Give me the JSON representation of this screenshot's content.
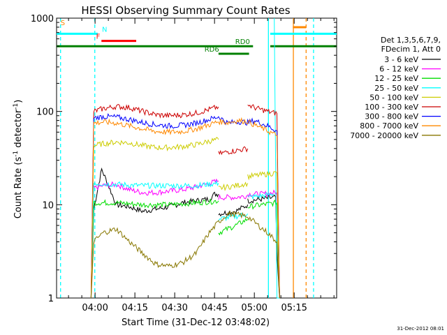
{
  "chart_data": {
    "type": "line",
    "title": "HESSI Observing Summary Count Rates",
    "xlabel": "Start Time (31-Dec-12 03:48:02)",
    "ylabel": "Count Rate (s⁻¹ detector⁻¹)",
    "ylabel_parts": {
      "base": "Count Rate (s",
      "sup1": "-1",
      "mid": " detector",
      "sup2": "-1",
      "end": ")"
    },
    "footer": "31-Dec-2012 08:01",
    "x_range_min": [
      -2.5,
      103
    ],
    "x_ticks": [
      {
        "v": 12,
        "label": "04:00"
      },
      {
        "v": 27,
        "label": "04:15"
      },
      {
        "v": 42,
        "label": "04:30"
      },
      {
        "v": 57,
        "label": "04:45"
      },
      {
        "v": 72,
        "label": "05:00"
      },
      {
        "v": 87,
        "label": "05:15"
      }
    ],
    "y_scale": "log",
    "y_range": [
      1,
      1000
    ],
    "y_ticks": [
      {
        "v": 1,
        "label": "1"
      },
      {
        "v": 10,
        "label": "10"
      },
      {
        "v": 100,
        "label": "100"
      },
      {
        "v": 1000,
        "label": "1000"
      }
    ],
    "legend": {
      "placement": "right",
      "header": [
        "Det 1,3,5,6,7,9,",
        "FDecim 1, Att 0"
      ],
      "entries": [
        {
          "label": "3 - 6 keV",
          "color": "#000000"
        },
        {
          "label": "6 - 12 keV",
          "color": "#ff00ff"
        },
        {
          "label": "12 - 25 keV",
          "color": "#00dd00"
        },
        {
          "label": "25 - 50 keV",
          "color": "#00ffff"
        },
        {
          "label": "50 - 100 keV",
          "color": "#cccc00"
        },
        {
          "label": "100 - 300 keV",
          "color": "#cc0000"
        },
        {
          "label": "300 - 800 keV",
          "color": "#0000ff"
        },
        {
          "label": "800 - 7000 keV",
          "color": "#ff8800"
        },
        {
          "label": "7000 - 20000 keV",
          "color": "#887700"
        }
      ]
    },
    "series": [
      {
        "name": "3 - 6 keV",
        "color": "#000000",
        "segments": [
          {
            "x": [
              10.5,
              11.5,
              14.5,
              20,
              25,
              30,
              35,
              40,
              45,
              50,
              55,
              57,
              58.5
            ],
            "y": [
              1,
              9,
              24,
              10,
              9.5,
              8.5,
              9,
              9.5,
              10.5,
              11,
              11.5,
              13,
              13
            ]
          },
          {
            "x": [
              58.5,
              65,
              69.5
            ],
            "y": [
              8,
              8.5,
              10
            ]
          },
          {
            "x": [
              69.5,
              80,
              80.5,
              81.5
            ],
            "y": [
              11,
              12,
              3,
              1
            ]
          }
        ]
      },
      {
        "name": "6 - 12 keV",
        "color": "#ff00ff",
        "segments": [
          {
            "x": [
              10.5,
              11.5,
              15,
              20,
              25,
              30,
              35,
              40,
              45,
              50,
              55,
              58.5
            ],
            "y": [
              1,
              15,
              16,
              16.5,
              14.5,
              13.5,
              13.5,
              14,
              14.5,
              15.5,
              17,
              18
            ]
          },
          {
            "x": [
              58.5,
              65,
              69.5
            ],
            "y": [
              12,
              12,
              12.5
            ]
          },
          {
            "x": [
              69.5,
              75,
              80.5,
              81.5
            ],
            "y": [
              13,
              13,
              13.5,
              1
            ]
          }
        ]
      },
      {
        "name": "12 - 25 keV",
        "color": "#00dd00",
        "segments": [
          {
            "x": [
              10.5,
              11.5,
              20,
              30,
              40,
              50,
              58.5
            ],
            "y": [
              1,
              10.5,
              10.5,
              10,
              10,
              10.5,
              11
            ]
          },
          {
            "x": [
              58.5,
              65,
              69.5
            ],
            "y": [
              5,
              6,
              7
            ]
          },
          {
            "x": [
              69.5,
              75,
              80.5,
              81.5
            ],
            "y": [
              9.5,
              10,
              10.5,
              1
            ]
          }
        ]
      },
      {
        "name": "25 - 50 keV",
        "color": "#00ffff",
        "segments": [
          {
            "x": [
              10.5,
              11.5,
              20,
              30,
              40,
              50,
              58.5
            ],
            "y": [
              1,
              17,
              16.5,
              16,
              16,
              16,
              17
            ]
          },
          {
            "x": [
              58.5,
              65,
              69.5
            ],
            "y": [
              7,
              7.5,
              8
            ]
          },
          {
            "x": [
              69.5,
              75,
              79.5
            ],
            "y": [
              12,
              12.5,
              13
            ]
          },
          {
            "x": [
              79.5,
              80.5,
              81.5
            ],
            "y": [
              1000,
              1,
              1
            ]
          }
        ]
      },
      {
        "name": "50 - 100 keV",
        "color": "#cccc00",
        "segments": [
          {
            "x": [
              10.5,
              11.5,
              15,
              20,
              25,
              30,
              35,
              40,
              45,
              50,
              55,
              58.5
            ],
            "y": [
              1,
              43,
              45,
              47,
              46,
              43,
              41,
              41,
              42,
              44,
              48,
              50
            ]
          },
          {
            "x": [
              58.5,
              65,
              69.5
            ],
            "y": [
              15,
              16,
              17
            ]
          },
          {
            "x": [
              69.5,
              75,
              80.5,
              81.5
            ],
            "y": [
              20,
              21,
              22,
              1
            ]
          }
        ]
      },
      {
        "name": "100 - 300 keV",
        "color": "#cc0000",
        "segments": [
          {
            "x": [
              10.5,
              11.5,
              15,
              20,
              25,
              30,
              35,
              40,
              45,
              50,
              55,
              58.5
            ],
            "y": [
              1,
              100,
              107,
              113,
              110,
              100,
              92,
              90,
              92,
              96,
              105,
              112
            ]
          },
          {
            "x": [
              58.5,
              62,
              65,
              69.5
            ],
            "y": [
              35,
              37,
              38,
              40
            ]
          },
          {
            "x": [
              69.5,
              72,
              77,
              80.5,
              81.5
            ],
            "y": [
              118,
              110,
              100,
              95,
              1
            ]
          }
        ]
      },
      {
        "name": "300 - 800 keV",
        "color": "#0000ff",
        "segments": [
          {
            "x": [
              10.5,
              11.5,
              15,
              20,
              25,
              30,
              35,
              40,
              45,
              50,
              55,
              58.5,
              62,
              66,
              69.5,
              72,
              77,
              80.5,
              81.5
            ],
            "y": [
              1,
              85,
              88,
              87,
              82,
              76,
              72,
              70,
              71,
              75,
              82,
              88,
              75,
              78,
              76,
              80,
              70,
              62,
              1
            ]
          }
        ]
      },
      {
        "name": "800 - 7000 keV",
        "color": "#ff8800",
        "segments": [
          {
            "x": [
              10.5,
              11.5,
              15,
              20,
              25,
              30,
              35,
              40,
              45,
              50,
              55,
              58.5,
              62,
              66,
              69.5,
              72,
              77,
              80.5,
              81.5
            ],
            "y": [
              1,
              75,
              77,
              75,
              70,
              65,
              61,
              60,
              61,
              65,
              72,
              78,
              76,
              80,
              78,
              72,
              62,
              55,
              1
            ]
          }
        ]
      },
      {
        "name": "7000 - 20000 keV",
        "color": "#887700",
        "segments": [
          {
            "x": [
              10.5,
              11.5,
              15,
              20,
              25,
              30,
              35,
              40,
              45,
              50,
              55,
              58.5,
              62,
              66,
              69.5,
              72,
              77,
              80.5,
              81.5
            ],
            "y": [
              1,
              4,
              5,
              5.5,
              4,
              3,
              2.3,
              2.2,
              2.4,
              3,
              5,
              6.5,
              8,
              7.8,
              7.5,
              6.5,
              5,
              4,
              1
            ]
          }
        ]
      }
    ],
    "vlines": [
      {
        "x": -1,
        "color": "#00ffff",
        "dash": true
      },
      {
        "x": 11.9,
        "color": "#00ffff",
        "dash": true
      },
      {
        "x": 77.3,
        "color": "#00ffff",
        "dash": false
      },
      {
        "x": 86.7,
        "color": "#ff8800",
        "dash": false
      },
      {
        "x": 91.5,
        "color": "#ff8800",
        "dash": true
      },
      {
        "x": 94.3,
        "color": "#00ffff",
        "dash": true
      }
    ],
    "flags": [
      {
        "label": "S",
        "color": "#ff8800",
        "y": 800,
        "x1": null,
        "x2": null,
        "label_x": -1
      },
      {
        "label": "",
        "color": "#00ffff",
        "y": 680,
        "x1": -2.5,
        "x2": 13,
        "label_x": null
      },
      {
        "label": "N",
        "color": "#00ffff",
        "y": 680,
        "x1": null,
        "x2": null,
        "label_x": 14.6
      },
      {
        "label": "F",
        "color": "#ff0000",
        "y": 570,
        "x1": 14.4,
        "x2": 27.5,
        "label_x": 12.4
      },
      {
        "label": "RD0",
        "color": "#008000",
        "y": 500,
        "x1": -2.5,
        "x2": 71.5,
        "label_x": 64.8
      },
      {
        "label": "",
        "color": "#008000",
        "y": 500,
        "x1": 78,
        "x2": 103,
        "label_x": null
      },
      {
        "label": "RD6",
        "color": "#008000",
        "y": 415,
        "x1": 58.5,
        "x2": 70,
        "label_x": 53.2
      },
      {
        "label": "",
        "color": "#00ffff",
        "y": 680,
        "x1": 78,
        "x2": 103,
        "label_x": null
      },
      {
        "label": "",
        "color": "#ff8800",
        "y": 800,
        "x1": 86.5,
        "x2": 91.5,
        "label_x": null
      }
    ]
  }
}
